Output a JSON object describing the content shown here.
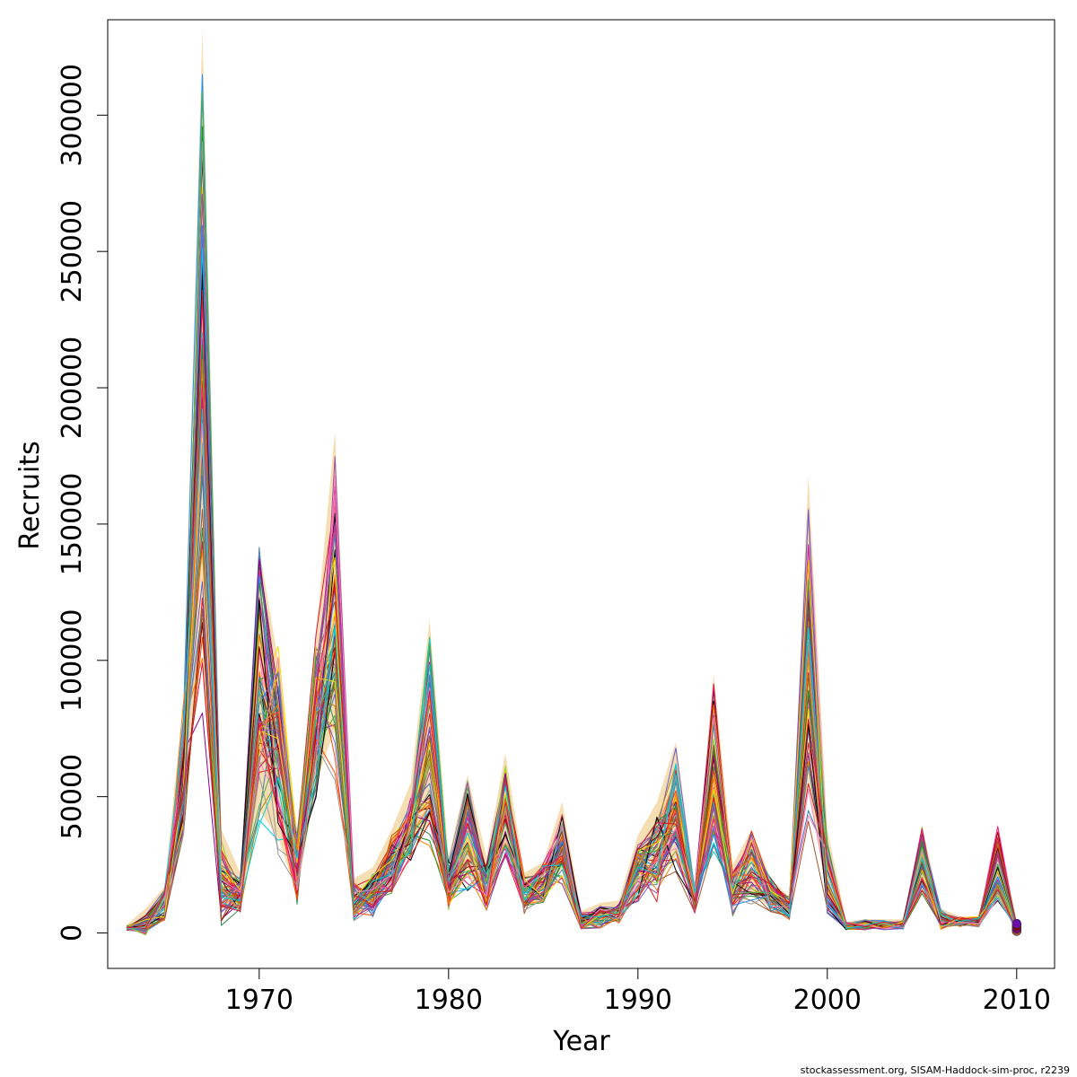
{
  "chart_data": {
    "type": "line",
    "title": "",
    "xlabel": "Year",
    "ylabel": "Recruits",
    "xlim": [
      1962,
      2012
    ],
    "ylim": [
      -13000,
      335000
    ],
    "x_ticks": [
      1970,
      1980,
      1990,
      2000,
      2010
    ],
    "y_ticks": [
      0,
      50000,
      100000,
      150000,
      200000,
      250000,
      300000
    ],
    "x": [
      1963,
      1964,
      1965,
      1966,
      1967,
      1968,
      1969,
      1970,
      1971,
      1972,
      1973,
      1974,
      1975,
      1976,
      1977,
      1978,
      1979,
      1980,
      1981,
      1982,
      1983,
      1984,
      1985,
      1986,
      1987,
      1988,
      1989,
      1990,
      1991,
      1992,
      1993,
      1994,
      1995,
      1996,
      1997,
      1998,
      1999,
      2000,
      2001,
      2002,
      2003,
      2004,
      2005,
      2006,
      2007,
      2008,
      2009,
      2010
    ],
    "band": {
      "lower": [
        1500,
        2500,
        5000,
        38000,
        120000,
        9000,
        9000,
        45000,
        35000,
        14000,
        55000,
        75000,
        7000,
        9000,
        17000,
        30000,
        40000,
        12000,
        22000,
        12000,
        32000,
        10000,
        12000,
        24000,
        2500,
        3500,
        5000,
        16000,
        20000,
        28000,
        9000,
        40000,
        9000,
        15000,
        9000,
        5000,
        55000,
        12000,
        1500,
        1500,
        1500,
        2000,
        15000,
        3000,
        2500,
        2500,
        14000,
        500
      ],
      "upper": [
        3000,
        9000,
        17000,
        85000,
        332000,
        38000,
        22000,
        141000,
        100000,
        38000,
        110000,
        184000,
        20000,
        24000,
        38000,
        55000,
        115000,
        28000,
        58000,
        28000,
        66000,
        22000,
        26000,
        48000,
        8000,
        11000,
        12000,
        36000,
        48000,
        70000,
        18000,
        95000,
        25000,
        38000,
        20000,
        13000,
        168000,
        38000,
        4000,
        5000,
        5000,
        5000,
        39000,
        9000,
        6000,
        6000,
        40000,
        4000
      ]
    },
    "series_median": [
      1800,
      3000,
      10000,
      60000,
      195000,
      18000,
      14000,
      88000,
      66000,
      24000,
      78000,
      118000,
      11000,
      14000,
      25000,
      38000,
      68000,
      17000,
      35000,
      17000,
      45000,
      14000,
      18000,
      32000,
      4000,
      6000,
      7000,
      22000,
      27000,
      45000,
      12000,
      60000,
      15000,
      24000,
      14000,
      9000,
      100000,
      20000,
      2500,
      3000,
      3000,
      3000,
      27000,
      5000,
      4000,
      4000,
      24000,
      2000
    ],
    "n_series": 60,
    "band_color": "#f5deb3",
    "series_colors": [
      "#000000",
      "#e41a1c",
      "#377eb8",
      "#4daf4a",
      "#984ea3",
      "#ff7f00",
      "#ffd700",
      "#a65628",
      "#f781bf",
      "#999999",
      "#00ced1",
      "#dc143c",
      "#228b22",
      "#8b008b",
      "#ff1493",
      "#1e90ff",
      "#b8860b",
      "#6a5acd",
      "#2e8b57",
      "#c71585",
      "#ff4500",
      "#4682b4",
      "#9acd32",
      "#800000"
    ]
  },
  "credit": "stockassessment.org, SISAM-Haddock-sim-proc, r2239"
}
